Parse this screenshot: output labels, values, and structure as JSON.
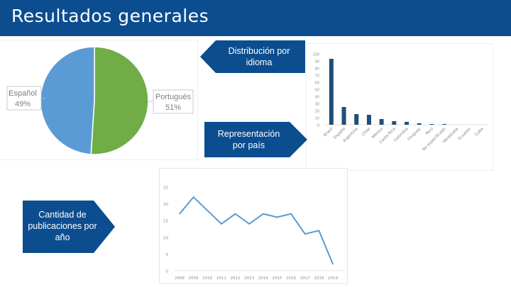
{
  "slide": {
    "title": "Resultados generales"
  },
  "colors": {
    "header_bg": "#0b4d8f",
    "callout_bg": "#0b4d8f",
    "pie_blue": "#5b9bd5",
    "pie_green": "#70ad47",
    "bar": "#1f4e79",
    "line": "#5b9bd5"
  },
  "callouts": {
    "language": {
      "line1": "Distribución por",
      "line2": "idioma"
    },
    "country": {
      "line1": "Representación",
      "line2": "por país"
    },
    "year": {
      "line1": "Cantidad de",
      "line2": "publicaciones por",
      "line3": "año"
    }
  },
  "chart_data": [
    {
      "type": "pie",
      "slices": [
        {
          "label": "Español",
          "value": 49,
          "display": "49%",
          "color": "#5b9bd5"
        },
        {
          "label": "Portugués",
          "value": 51,
          "display": "51%",
          "color": "#70ad47"
        }
      ]
    },
    {
      "type": "bar",
      "categories": [
        "Brasil",
        "España",
        "Argentina",
        "Chile",
        "México",
        "Costa Rica",
        "Colombia",
        "Uruguay",
        "Perú",
        "No especificado",
        "Venezuela",
        "Ecuador",
        "Cuba"
      ],
      "values": [
        93,
        25,
        15,
        14,
        8,
        5,
        4,
        2,
        1,
        1,
        0,
        0,
        0
      ],
      "ylim": [
        0,
        100
      ],
      "yticks": [
        "0",
        "10",
        "20",
        "30",
        "40",
        "50",
        "60",
        "70",
        "80",
        "90",
        "100"
      ]
    },
    {
      "type": "line",
      "x": [
        "2008",
        "2009",
        "2010",
        "2011",
        "2012",
        "2013",
        "2014",
        "2015",
        "2016",
        "2017",
        "2018",
        "2019"
      ],
      "values": [
        17,
        22,
        18,
        14,
        17,
        14,
        17,
        16,
        17,
        11,
        12,
        2
      ],
      "ylim": [
        0,
        25
      ],
      "yticks": [
        "0",
        "5",
        "10",
        "15",
        "20",
        "25"
      ]
    }
  ]
}
